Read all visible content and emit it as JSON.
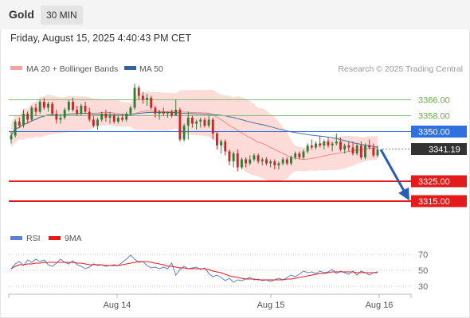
{
  "header": {
    "instrument": "Gold",
    "interval": "30 MIN"
  },
  "timestamp": "Friday, August 15, 2025 4:40:43 PM CET",
  "copyright": "Research © 2025 Trading Central",
  "legend": {
    "bollinger": "MA 20 + Bollinger Bands",
    "ma50": "MA 50",
    "rsi": "RSI",
    "rsi_ma": "9MA"
  },
  "colors": {
    "candle_up": "#2e7d32",
    "candle_down": "#c62828",
    "bollinger_fill": "#fbd5d2",
    "ma20": "#f08a80",
    "ma50": "#4a6fa5",
    "resistance": "#7cc470",
    "pivot": "#2f6fe0",
    "support": "#e31b1b",
    "price_tag": "#333333",
    "rsi": "#5b7fd6",
    "rsi_ma": "#e31b1b",
    "arrow": "#2a5db0"
  },
  "chart_data": [
    {
      "type": "candlestick",
      "x_ticks": [
        "Aug 14",
        "Aug 15",
        "Aug 16"
      ],
      "ylim": [
        3305,
        3375
      ],
      "levels": [
        {
          "label": "3366.00",
          "value": 3366.0,
          "kind": "resistance"
        },
        {
          "label": "3358.00",
          "value": 3358.0,
          "kind": "resistance"
        },
        {
          "label": "3350.00",
          "value": 3350.0,
          "kind": "pivot"
        },
        {
          "label": "3341.19",
          "value": 3341.19,
          "kind": "last_price"
        },
        {
          "label": "3325.00",
          "value": 3325.0,
          "kind": "support"
        },
        {
          "label": "3315.00",
          "value": 3315.0,
          "kind": "support"
        }
      ],
      "forecast_arrow": {
        "from": 3341.0,
        "to": 3315.0
      },
      "ohlc": [
        [
          3346.0,
          3350.0,
          3344.0,
          3348.0
        ],
        [
          3348.0,
          3356.0,
          3347.0,
          3355.0
        ],
        [
          3355.0,
          3357.0,
          3352.0,
          3353.0
        ],
        [
          3353.0,
          3361.0,
          3352.0,
          3359.0
        ],
        [
          3359.0,
          3360.0,
          3354.0,
          3356.0
        ],
        [
          3356.0,
          3363.0,
          3355.0,
          3362.0
        ],
        [
          3362.0,
          3364.0,
          3358.0,
          3360.0
        ],
        [
          3360.0,
          3366.0,
          3359.0,
          3365.0
        ],
        [
          3365.0,
          3367.0,
          3361.0,
          3362.0
        ],
        [
          3362.0,
          3365.0,
          3360.0,
          3364.0
        ],
        [
          3364.0,
          3365.0,
          3358.0,
          3359.0
        ],
        [
          3359.0,
          3361.0,
          3354.0,
          3356.0
        ],
        [
          3356.0,
          3359.0,
          3354.0,
          3357.0
        ],
        [
          3357.0,
          3362.0,
          3356.0,
          3361.0
        ],
        [
          3361.0,
          3366.0,
          3360.0,
          3365.0
        ],
        [
          3365.0,
          3367.0,
          3360.0,
          3361.0
        ],
        [
          3361.0,
          3363.0,
          3358.0,
          3359.0
        ],
        [
          3359.0,
          3364.0,
          3358.0,
          3363.0
        ],
        [
          3363.0,
          3365.0,
          3359.0,
          3360.0
        ],
        [
          3360.0,
          3362.0,
          3355.0,
          3356.0
        ],
        [
          3356.0,
          3358.0,
          3352.0,
          3353.0
        ],
        [
          3353.0,
          3357.0,
          3351.0,
          3356.0
        ],
        [
          3356.0,
          3360.0,
          3355.0,
          3359.0
        ],
        [
          3359.0,
          3361.0,
          3355.0,
          3357.0
        ],
        [
          3357.0,
          3360.0,
          3354.0,
          3358.0
        ],
        [
          3358.0,
          3359.0,
          3354.0,
          3355.0
        ],
        [
          3355.0,
          3358.0,
          3354.0,
          3357.0
        ],
        [
          3357.0,
          3359.0,
          3355.0,
          3356.0
        ],
        [
          3356.0,
          3360.0,
          3355.0,
          3359.0
        ],
        [
          3359.0,
          3363.0,
          3358.0,
          3362.0
        ],
        [
          3362.0,
          3374.0,
          3361.0,
          3372.0
        ],
        [
          3372.0,
          3373.0,
          3366.0,
          3368.0
        ],
        [
          3368.0,
          3370.0,
          3364.0,
          3366.0
        ],
        [
          3366.0,
          3369.0,
          3363.0,
          3367.0
        ],
        [
          3367.0,
          3368.0,
          3361.0,
          3362.0
        ],
        [
          3362.0,
          3363.0,
          3357.0,
          3359.0
        ],
        [
          3359.0,
          3361.0,
          3356.0,
          3360.0
        ],
        [
          3360.0,
          3362.0,
          3358.0,
          3359.0
        ],
        [
          3359.0,
          3360.0,
          3357.0,
          3360.0
        ],
        [
          3360.0,
          3361.0,
          3357.0,
          3358.0
        ],
        [
          3358.0,
          3366.0,
          3358.0,
          3361.0
        ],
        [
          3361.0,
          3362.0,
          3345.0,
          3346.0
        ],
        [
          3346.0,
          3354.0,
          3345.0,
          3353.0
        ],
        [
          3353.0,
          3360.0,
          3346.0,
          3357.0
        ],
        [
          3357.0,
          3358.0,
          3352.0,
          3354.0
        ],
        [
          3354.0,
          3356.0,
          3351.0,
          3355.0
        ],
        [
          3355.0,
          3357.0,
          3352.0,
          3356.0
        ],
        [
          3356.0,
          3357.0,
          3352.0,
          3353.0
        ],
        [
          3353.0,
          3358.0,
          3352.0,
          3356.0
        ],
        [
          3356.0,
          3357.0,
          3346.0,
          3349.0
        ],
        [
          3349.0,
          3350.0,
          3341.0,
          3343.0
        ],
        [
          3343.0,
          3346.0,
          3339.0,
          3345.0
        ],
        [
          3345.0,
          3346.0,
          3338.0,
          3340.0
        ],
        [
          3340.0,
          3341.0,
          3333.0,
          3335.0
        ],
        [
          3335.0,
          3340.0,
          3332.0,
          3339.0
        ],
        [
          3339.0,
          3341.0,
          3330.0,
          3332.0
        ],
        [
          3332.0,
          3337.0,
          3331.0,
          3336.0
        ],
        [
          3336.0,
          3337.0,
          3332.0,
          3334.0
        ],
        [
          3334.0,
          3338.0,
          3333.0,
          3336.0
        ],
        [
          3336.0,
          3339.0,
          3335.0,
          3338.0
        ],
        [
          3338.0,
          3339.0,
          3334.0,
          3335.0
        ],
        [
          3335.0,
          3337.0,
          3333.0,
          3336.0
        ],
        [
          3336.0,
          3337.0,
          3333.0,
          3334.0
        ],
        [
          3334.0,
          3336.0,
          3332.0,
          3335.0
        ],
        [
          3335.0,
          3336.0,
          3331.0,
          3333.0
        ],
        [
          3333.0,
          3335.0,
          3331.0,
          3334.0
        ],
        [
          3334.0,
          3337.0,
          3333.0,
          3336.0
        ],
        [
          3336.0,
          3337.0,
          3333.0,
          3334.0
        ],
        [
          3334.0,
          3338.0,
          3333.0,
          3337.0
        ],
        [
          3337.0,
          3340.0,
          3336.0,
          3339.0
        ],
        [
          3339.0,
          3340.0,
          3336.0,
          3337.0
        ],
        [
          3337.0,
          3341.0,
          3336.0,
          3340.0
        ],
        [
          3340.0,
          3344.0,
          3339.0,
          3343.0
        ],
        [
          3343.0,
          3346.0,
          3341.0,
          3342.0
        ],
        [
          3342.0,
          3345.0,
          3341.0,
          3344.0
        ],
        [
          3344.0,
          3348.0,
          3342.0,
          3343.0
        ],
        [
          3343.0,
          3346.0,
          3341.0,
          3345.0
        ],
        [
          3345.0,
          3347.0,
          3342.0,
          3343.0
        ],
        [
          3343.0,
          3345.0,
          3340.0,
          3344.0
        ],
        [
          3344.0,
          3349.0,
          3343.0,
          3345.0
        ],
        [
          3345.0,
          3347.0,
          3340.0,
          3341.0
        ],
        [
          3341.0,
          3344.0,
          3339.0,
          3343.0
        ],
        [
          3343.0,
          3345.0,
          3340.0,
          3342.0
        ],
        [
          3342.0,
          3345.0,
          3338.0,
          3339.0
        ],
        [
          3339.0,
          3344.0,
          3338.0,
          3343.0
        ],
        [
          3343.0,
          3345.0,
          3336.0,
          3337.0
        ],
        [
          3337.0,
          3344.0,
          3336.0,
          3343.0
        ],
        [
          3343.0,
          3346.0,
          3341.0,
          3342.0
        ],
        [
          3342.0,
          3344.0,
          3337.0,
          3338.0
        ],
        [
          3338.0,
          3343.0,
          3337.0,
          3341.0
        ]
      ]
    },
    {
      "type": "line",
      "ylim": [
        25,
        75
      ],
      "y_ticks": [
        "70",
        "50",
        "30"
      ],
      "x_ticks": [
        "Aug 14",
        "Aug 15",
        "Aug 16"
      ],
      "series": [
        {
          "name": "RSI",
          "values": [
            52,
            58,
            61,
            56,
            63,
            60,
            64,
            61,
            63,
            57,
            55,
            59,
            64,
            60,
            58,
            62,
            57,
            55,
            52,
            54,
            58,
            56,
            57,
            55,
            56,
            57,
            56,
            60,
            64,
            69,
            64,
            60,
            61,
            56,
            53,
            54,
            52,
            54,
            52,
            59,
            44,
            51,
            55,
            52,
            53,
            54,
            51,
            53,
            46,
            42,
            44,
            41,
            37,
            40,
            35,
            38,
            37,
            39,
            41,
            38,
            39,
            37,
            38,
            36,
            38,
            40,
            38,
            41,
            44,
            42,
            45,
            49,
            47,
            48,
            46,
            49,
            47,
            48,
            51,
            46,
            49,
            47,
            45,
            49,
            44,
            49,
            47,
            44,
            47,
            48
          ]
        },
        {
          "name": "9MA",
          "values": [
            52,
            55,
            57,
            57,
            58,
            58,
            59,
            59,
            60,
            60,
            60,
            60,
            60,
            60,
            60,
            60,
            59,
            59,
            58,
            57,
            57,
            57,
            57,
            56,
            56,
            56,
            56,
            57,
            58,
            59,
            60,
            61,
            61,
            61,
            60,
            59,
            58,
            57,
            55,
            55,
            54,
            53,
            53,
            52,
            52,
            52,
            52,
            52,
            51,
            49,
            48,
            47,
            45,
            43,
            42,
            41,
            40,
            39,
            39,
            39,
            38,
            38,
            38,
            38,
            38,
            38,
            38,
            39,
            39,
            40,
            41,
            42,
            43,
            44,
            45,
            46,
            46,
            47,
            48,
            48,
            48,
            48,
            48,
            48,
            47,
            47,
            47,
            47,
            47,
            47
          ]
        }
      ]
    }
  ]
}
